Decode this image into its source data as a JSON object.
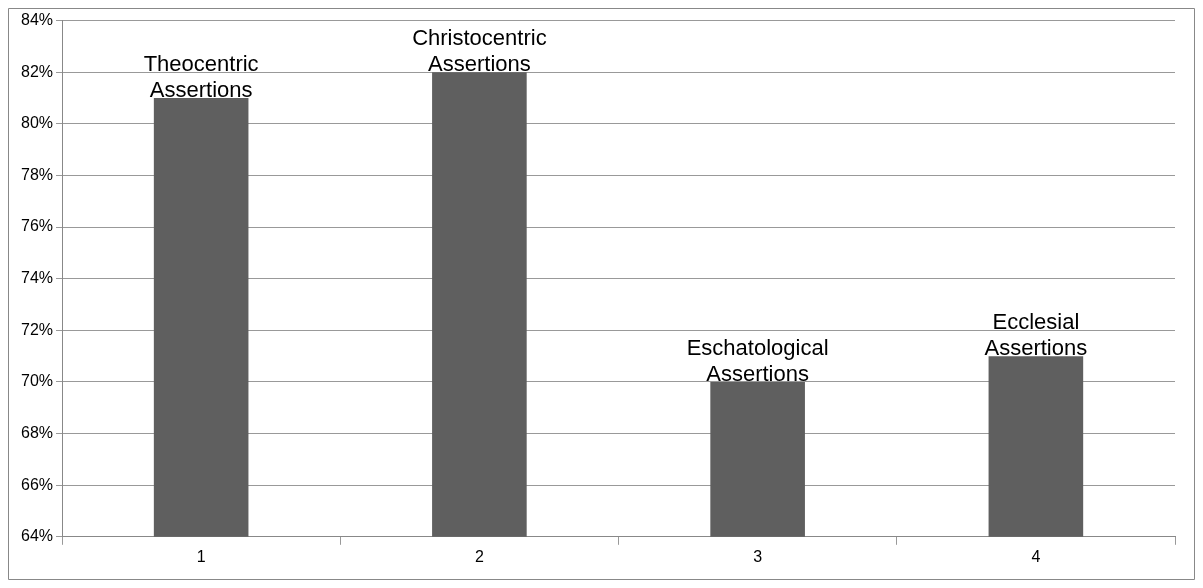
{
  "chart_data": {
    "type": "bar",
    "categories": [
      "1",
      "2",
      "3",
      "4"
    ],
    "values": [
      81,
      82,
      70,
      71
    ],
    "color": "#5f5f5f",
    "ylim": [
      64,
      84
    ],
    "yticks": [
      {
        "value": 64,
        "label": "64%"
      },
      {
        "value": 66,
        "label": "66%"
      },
      {
        "value": 68,
        "label": "68%"
      },
      {
        "value": 70,
        "label": "70%"
      },
      {
        "value": 72,
        "label": "72%"
      },
      {
        "value": 74,
        "label": "74%"
      },
      {
        "value": 76,
        "label": "76%"
      },
      {
        "value": 78,
        "label": "78%"
      },
      {
        "value": 80,
        "label": "80%"
      },
      {
        "value": 82,
        "label": "82%"
      },
      {
        "value": 84,
        "label": "84%"
      }
    ],
    "grid": "y",
    "legend": false,
    "annotations": [
      {
        "text": "Theocentric Assertions",
        "x": "1",
        "y": 81
      },
      {
        "text": "Christocentric Assertions",
        "x": "2",
        "y": 82
      },
      {
        "text": "Eschatological Assertions",
        "x": "3",
        "y": 70
      },
      {
        "text": "Ecclesial Assertions",
        "x": "4",
        "y": 71
      }
    ]
  }
}
